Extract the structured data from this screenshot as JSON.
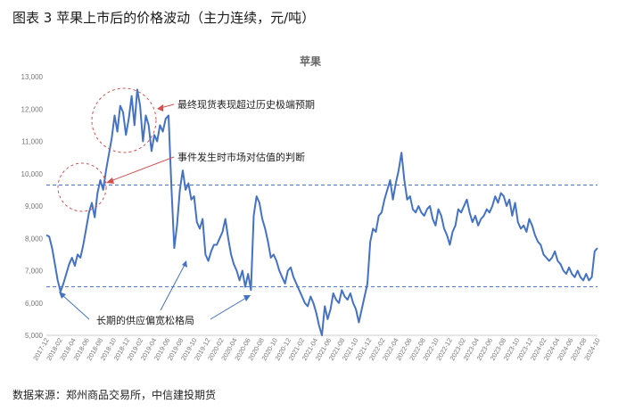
{
  "figure": {
    "title": "图表 3 苹果上市后的价格波动（主力连续，元/吨）",
    "source": "数据来源：郑州商品交易所，中信建投期货"
  },
  "chart_data": {
    "type": "line",
    "title": "苹果",
    "xlabel": "",
    "ylabel": "",
    "ylim": [
      5000,
      13000
    ],
    "yticks": [
      "5,000",
      "6,000",
      "7,000",
      "8,000",
      "9,000",
      "10,000",
      "11,000",
      "12,000",
      "13,000"
    ],
    "xticks": [
      "2017-12",
      "2018-02",
      "2018-04",
      "2018-06",
      "2018-08",
      "2018-10",
      "2018-12",
      "2019-02",
      "2019-04",
      "2019-06",
      "2019-08",
      "2019-10",
      "2019-12",
      "2020-02",
      "2020-04",
      "2020-06",
      "2020-08",
      "2020-10",
      "2020-12",
      "2021-02",
      "2021-04",
      "2021-06",
      "2021-08",
      "2021-10",
      "2021-12",
      "2022-02",
      "2022-04",
      "2022-06",
      "2022-08",
      "2022-10",
      "2022-12",
      "2023-02",
      "2023-04",
      "2023-06",
      "2023-08",
      "2023-10",
      "2023-12",
      "2024-02",
      "2024-04",
      "2024-06",
      "2024-08",
      "2024-10"
    ],
    "line_color": "#4472c4",
    "grid": false,
    "series": [
      {
        "values": [
          8100,
          8050,
          7700,
          7200,
          6700,
          6350,
          6600,
          6900,
          7200,
          7400,
          7150,
          7500,
          7400,
          7800,
          8300,
          8800,
          9100,
          8650,
          9400,
          9800,
          9500,
          10100,
          10600,
          11100,
          11800,
          11300,
          12100,
          11900,
          11200,
          11700,
          12400,
          11500,
          12600,
          12100,
          11000,
          11800,
          11500,
          10700,
          11200,
          11000,
          11500,
          11300,
          11700,
          11800,
          9600,
          7700,
          8400,
          9500,
          10100,
          9500,
          9700,
          9200,
          9300,
          8500,
          8300,
          8600,
          7500,
          7300,
          7600,
          7800,
          7800,
          8000,
          8200,
          8600,
          8000,
          7500,
          7200,
          7000,
          6700,
          7000,
          6500,
          6900,
          6400,
          8700,
          9300,
          9100,
          8600,
          8300,
          7900,
          7400,
          7500,
          7300,
          7000,
          6800,
          6600,
          7000,
          7100,
          6800,
          6600,
          6400,
          6200,
          6000,
          5900,
          6200,
          6000,
          5700,
          5300,
          5000,
          5900,
          5500,
          5800,
          6300,
          6100,
          6000,
          6400,
          6200,
          6100,
          6300,
          6000,
          5800,
          5400,
          5800,
          6200,
          6600,
          7900,
          8300,
          8200,
          8700,
          8800,
          9200,
          9500,
          9800,
          9200,
          9700,
          10100,
          10650,
          9800,
          9200,
          9300,
          8900,
          8800,
          9000,
          8800,
          8700,
          8900,
          9000,
          8600,
          8400,
          8900,
          8700,
          8300,
          8100,
          7800,
          8200,
          8400,
          8900,
          8800,
          9000,
          9200,
          8800,
          8500,
          8700,
          8400,
          8600,
          8700,
          8900,
          8800,
          9000,
          9300,
          9100,
          9400,
          9300,
          9000,
          9200,
          8700,
          9100,
          8500,
          8300,
          8400,
          8200,
          8600,
          8400,
          8100,
          7900,
          7800,
          7500,
          7400,
          7300,
          7400,
          7600,
          7300,
          7200,
          7000,
          6900,
          7100,
          6900,
          6800,
          7000,
          6800,
          6700,
          6900,
          6700,
          6800,
          7600,
          7700
        ]
      }
    ],
    "reference_lines": [
      9650,
      6500
    ],
    "annotations": [
      {
        "text": "最终现货表现超过历史极端预期"
      },
      {
        "text": "事件发生时市场对估值的判断"
      },
      {
        "text": "长期的供应偏宽松格局"
      }
    ]
  }
}
